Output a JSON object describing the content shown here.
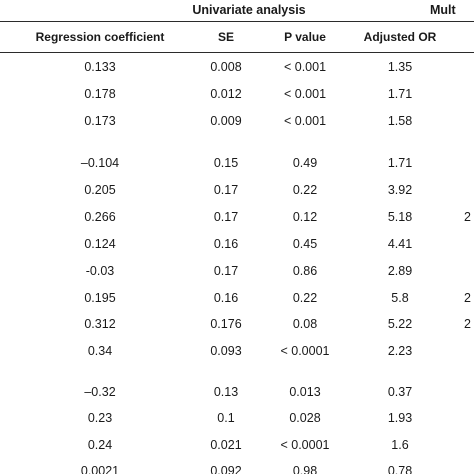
{
  "table": {
    "group_headers": {
      "univariate": "Univariate analysis",
      "multivariate": "Mult"
    },
    "column_headers": [
      "Regression coefficient",
      "SE",
      "P value",
      "Adjusted OR"
    ],
    "rows": [
      {
        "coef": "0.133",
        "se": "0.008",
        "p": "< 0.001",
        "or": "1.35",
        "next": ""
      },
      {
        "coef": "0.178",
        "se": "0.012",
        "p": "< 0.001",
        "or": "1.71",
        "next": ""
      },
      {
        "coef": "0.173",
        "se": "0.009",
        "p": "< 0.001",
        "or": "1.58",
        "next": ""
      },
      {
        "coef": "–0.104",
        "se": "0.15",
        "p": "0.49",
        "or": "1.71",
        "next": ""
      },
      {
        "coef": "0.205",
        "se": "0.17",
        "p": "0.22",
        "or": "3.92",
        "next": ""
      },
      {
        "coef": "0.266",
        "se": "0.17",
        "p": "0.12",
        "or": "5.18",
        "next": "2"
      },
      {
        "coef": "0.124",
        "se": "0.16",
        "p": "0.45",
        "or": "4.41",
        "next": ""
      },
      {
        "coef": "-0.03",
        "se": "0.17",
        "p": "0.86",
        "or": "2.89",
        "next": ""
      },
      {
        "coef": "0.195",
        "se": "0.16",
        "p": "0.22",
        "or": "5.8",
        "next": "2"
      },
      {
        "coef": "0.312",
        "se": "0.176",
        "p": "0.08",
        "or": "5.22",
        "next": "2"
      },
      {
        "coef": "0.34",
        "se": "0.093",
        "p": "< 0.0001",
        "or": "2.23",
        "next": ""
      },
      {
        "coef": "–0.32",
        "se": "0.13",
        "p": "0.013",
        "or": "0.37",
        "next": ""
      },
      {
        "coef": "0.23",
        "se": "0.1",
        "p": "0.028",
        "or": "1.93",
        "next": ""
      },
      {
        "coef": "0.24",
        "se": "0.021",
        "p": "< 0.0001",
        "or": "1.6",
        "next": ""
      },
      {
        "coef": "0.0021",
        "se": "0.092",
        "p": "0.98",
        "or": "0.78",
        "next": ""
      }
    ]
  }
}
